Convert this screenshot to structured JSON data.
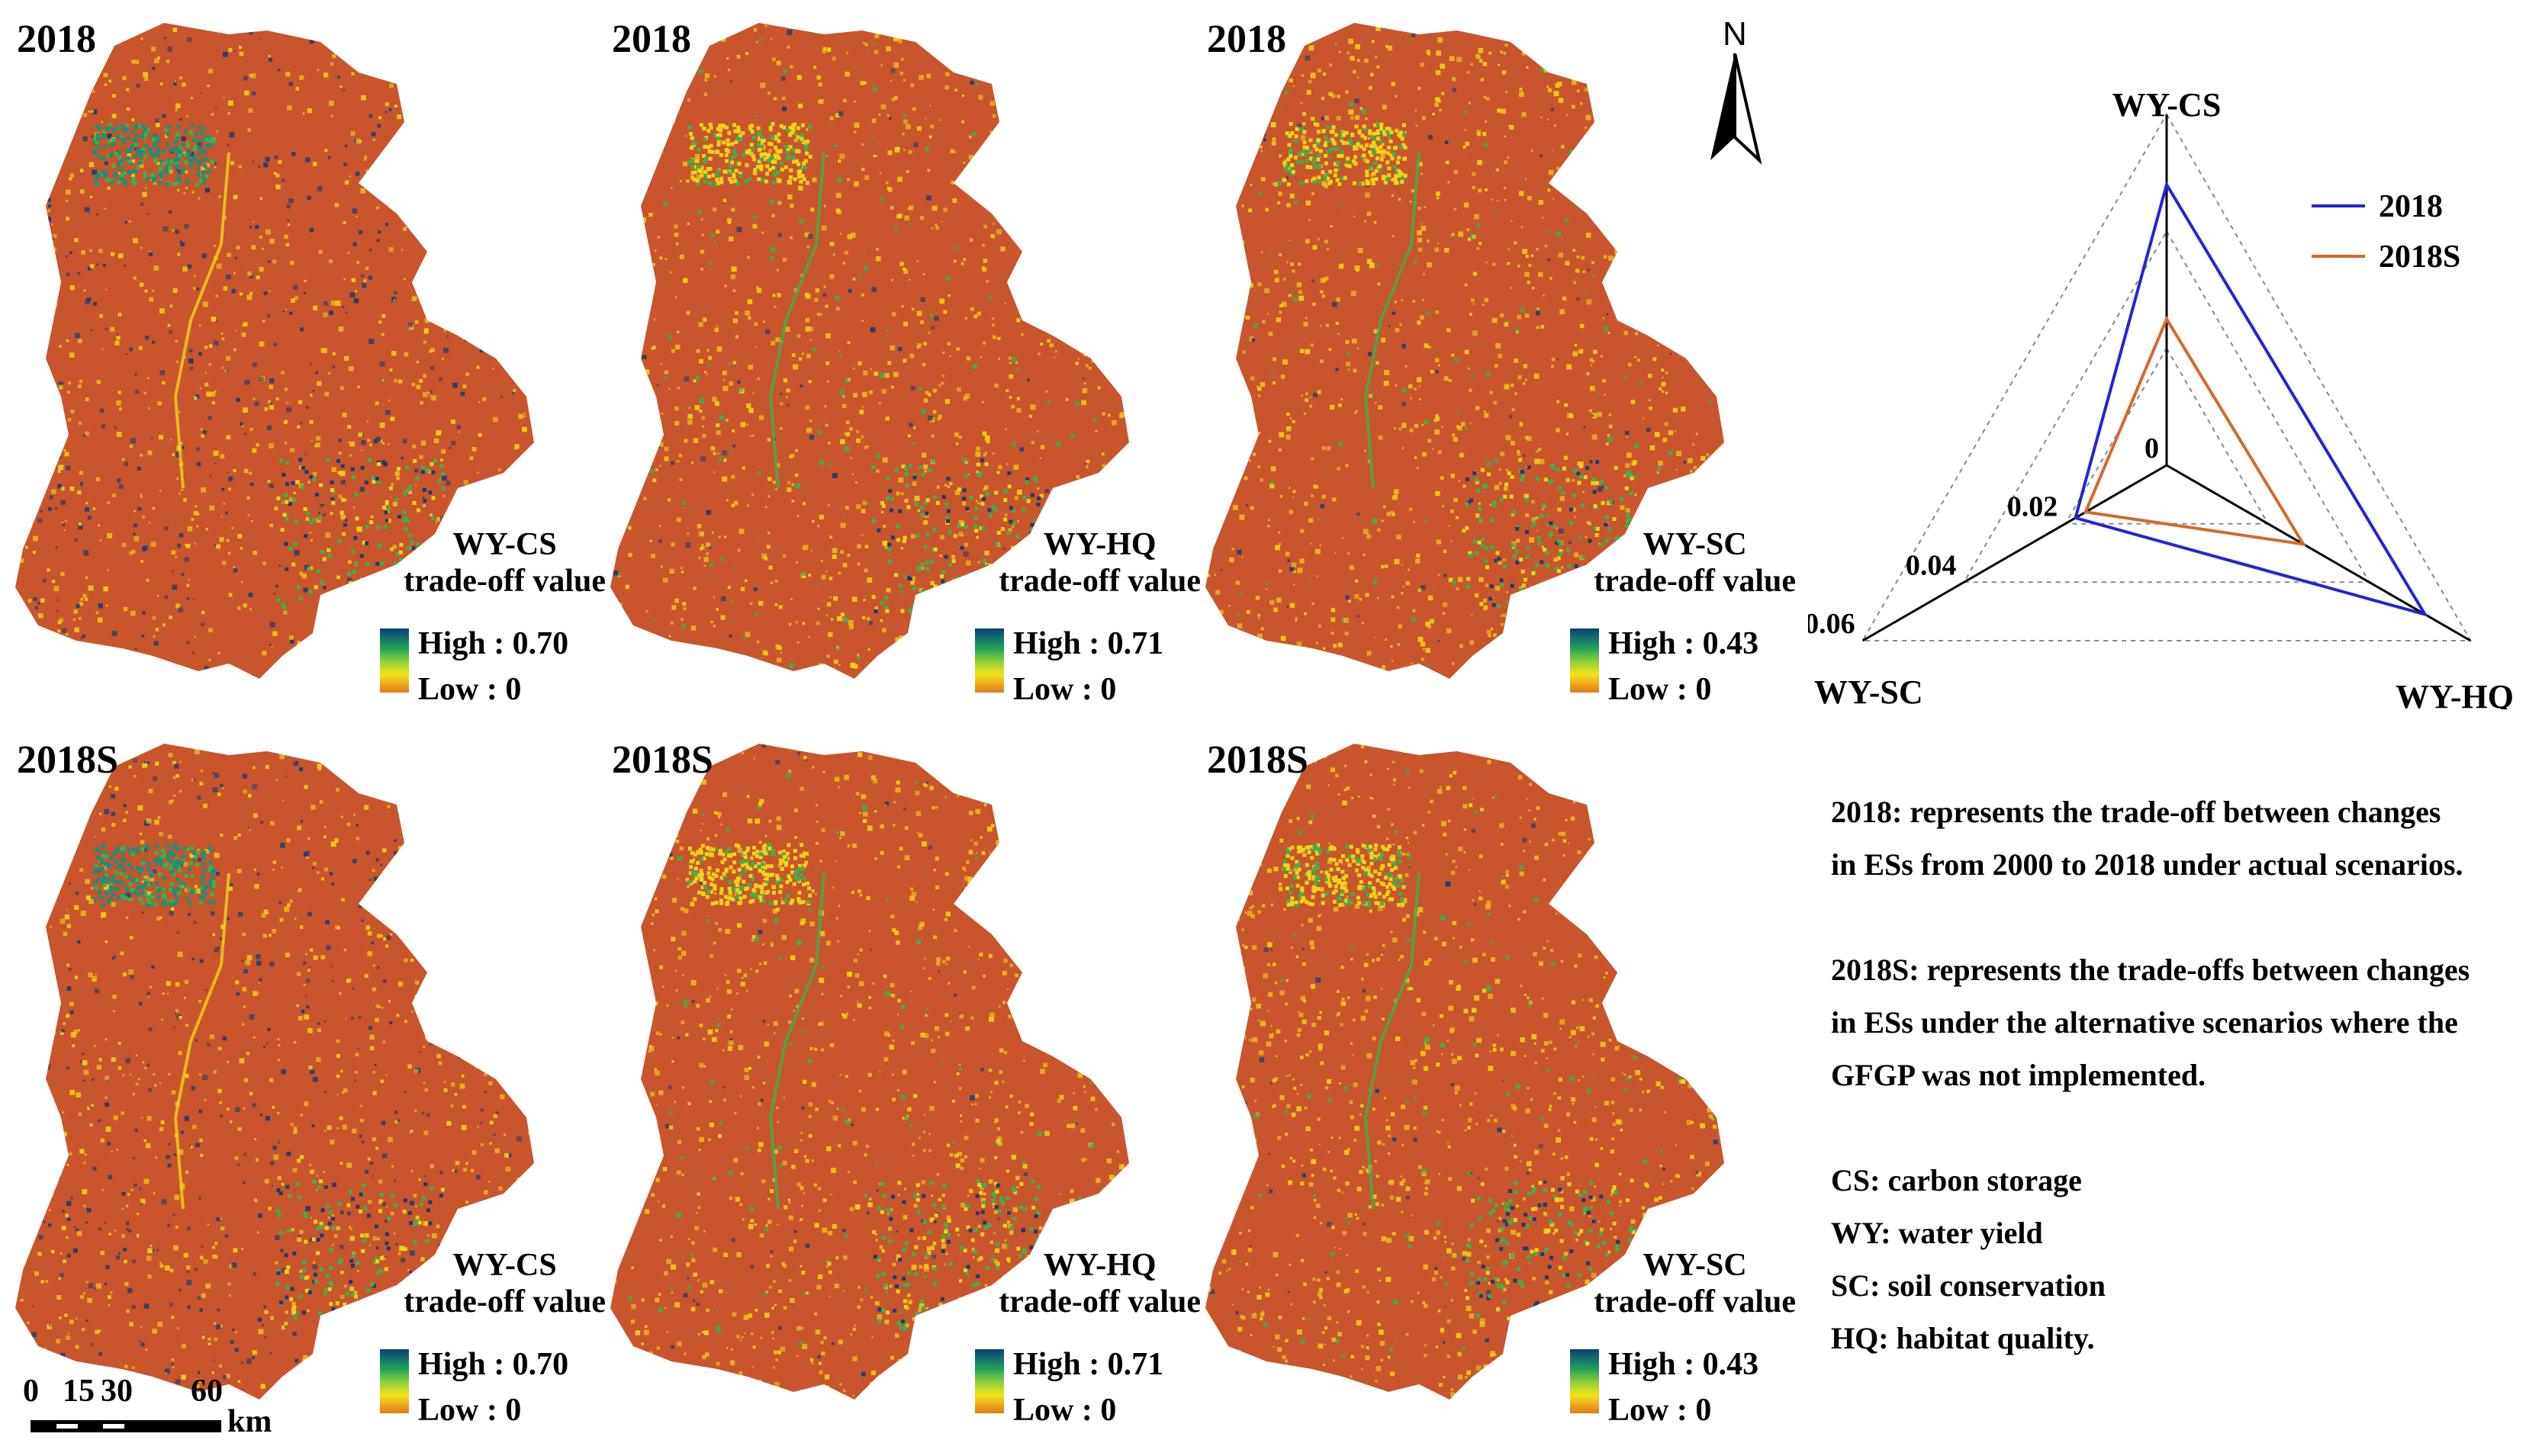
{
  "maps": [
    {
      "year": "2018",
      "layer_name": "WY-CS",
      "layer_subtitle": "trade-off value",
      "legend_high": "High : 0.70",
      "legend_low": "Low : 0"
    },
    {
      "year": "2018",
      "layer_name": "WY-HQ",
      "layer_subtitle": "trade-off value",
      "legend_high": "High : 0.71",
      "legend_low": "Low : 0"
    },
    {
      "year": "2018",
      "layer_name": "WY-SC",
      "layer_subtitle": "trade-off value",
      "legend_high": "High : 0.43",
      "legend_low": "Low : 0"
    },
    {
      "year": "2018S",
      "layer_name": "WY-CS",
      "layer_subtitle": "trade-off value",
      "legend_high": "High : 0.70",
      "legend_low": "Low : 0"
    },
    {
      "year": "2018S",
      "layer_name": "WY-HQ",
      "layer_subtitle": "trade-off value",
      "legend_high": "High : 0.71",
      "legend_low": "Low : 0"
    },
    {
      "year": "2018S",
      "layer_name": "WY-SC",
      "layer_subtitle": "trade-off value",
      "legend_high": "High : 0.43",
      "legend_low": "Low : 0"
    }
  ],
  "colors": {
    "base": "#c8552c",
    "yellow": "#f2d21c",
    "green": "#3db24a",
    "teal": "#1f8f7a",
    "navy": "#243a6e",
    "radar_2018": "#2424d6",
    "radar_2018S": "#d46a2a"
  },
  "scale_bar": {
    "ticks": [
      "0",
      "15",
      "30",
      "60"
    ],
    "unit": "km"
  },
  "north_arrow": {
    "label": "N"
  },
  "chart_data": {
    "type": "radar",
    "axes": [
      "WY-CS",
      "WY-HQ",
      "WY-SC"
    ],
    "tick_labels": [
      "0",
      "0.02",
      "0.04",
      "0.06"
    ],
    "rlim": [
      0,
      0.06
    ],
    "series": [
      {
        "name": "2018",
        "values": [
          0.048,
          0.051,
          0.018
        ]
      },
      {
        "name": "2018S",
        "values": [
          0.025,
          0.027,
          0.016
        ]
      }
    ],
    "legend_position": "top-right"
  },
  "notes": {
    "def_2018_line1": "2018:   represents the trade-off between changes",
    "def_2018_line2": "in ESs from 2000 to 2018 under actual scenarios.",
    "def_2018S_line1": "2018S: represents the trade-offs between changes",
    "def_2018S_line2": "in ESs under the alternative scenarios where the",
    "def_2018S_line3": "GFGP was not implemented.",
    "abbr_cs": "CS: carbon storage",
    "abbr_wy": "WY: water yield",
    "abbr_sc": "SC: soil conservation",
    "abbr_hq": "HQ: habitat quality."
  }
}
